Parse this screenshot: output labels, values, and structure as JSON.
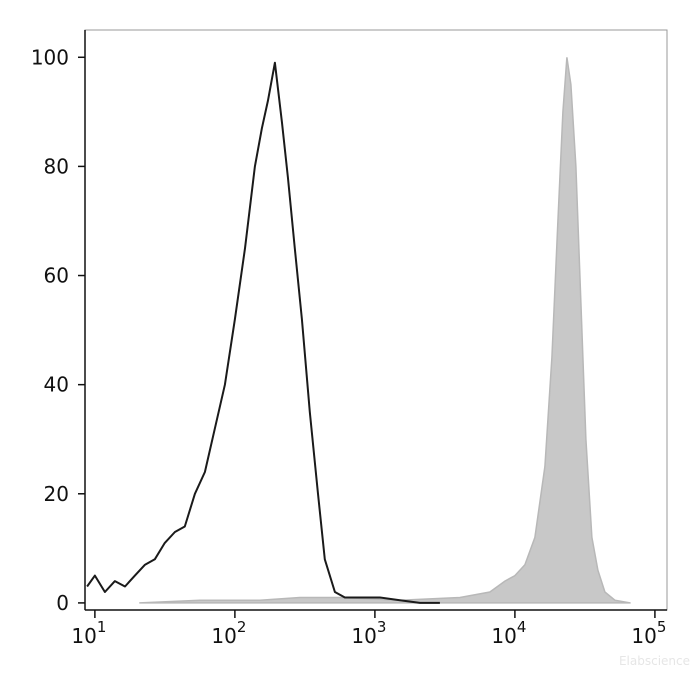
{
  "chart_data": {
    "type": "histogram-overlay",
    "x_scale": "log",
    "xlim": [
      8.5,
      122000
    ],
    "ylim": [
      -1.3,
      105
    ],
    "xticks": [
      {
        "value": 10,
        "label": "10",
        "exponent": "1"
      },
      {
        "value": 100,
        "label": "10",
        "exponent": "2"
      },
      {
        "value": 1000,
        "label": "10",
        "exponent": "3"
      },
      {
        "value": 10000,
        "label": "10",
        "exponent": "4"
      },
      {
        "value": 100000,
        "label": "10",
        "exponent": "5"
      }
    ],
    "yticks": [
      0,
      20,
      40,
      60,
      80,
      100
    ],
    "watermark": "Elabscience",
    "series": [
      {
        "color": "#c8c8c8",
        "filled": true,
        "x": [
          21.0,
          56.2,
          151,
          291,
          562,
          1509,
          4047,
          6628,
          8483,
          10000,
          11790,
          13900,
          16380,
          18370,
          20280,
          22030,
          23510,
          25120,
          27290,
          29600,
          32140,
          35480,
          39160,
          43920,
          51790,
          66240
        ],
        "values": [
          0,
          0.5,
          0.5,
          1,
          1,
          0.5,
          1,
          2,
          4,
          5,
          7,
          12,
          25,
          45,
          70,
          90,
          100,
          95,
          80,
          55,
          30,
          12,
          6,
          2,
          0.5,
          0
        ]
      },
      {
        "color": "#1a1a1a",
        "filled": false,
        "x": [
          8.8,
          10,
          11.8,
          13.9,
          16.4,
          19.3,
          22.8,
          26.8,
          31.6,
          37.3,
          43.9,
          51.8,
          61.1,
          72.0,
          84.8,
          100,
          118,
          139,
          156,
          172,
          193,
          217,
          239,
          268,
          301,
          343,
          392,
          439,
          518,
          611,
          781,
          1085,
          1509,
          2096,
          2913
        ],
        "values": [
          3,
          5,
          2,
          4,
          3,
          5,
          7,
          8,
          11,
          13,
          14,
          20,
          24,
          32,
          40,
          52,
          65,
          80,
          87,
          92,
          99,
          88,
          78,
          65,
          52,
          35,
          20,
          8,
          2,
          1,
          1,
          1,
          0.5,
          0,
          0
        ]
      }
    ]
  }
}
